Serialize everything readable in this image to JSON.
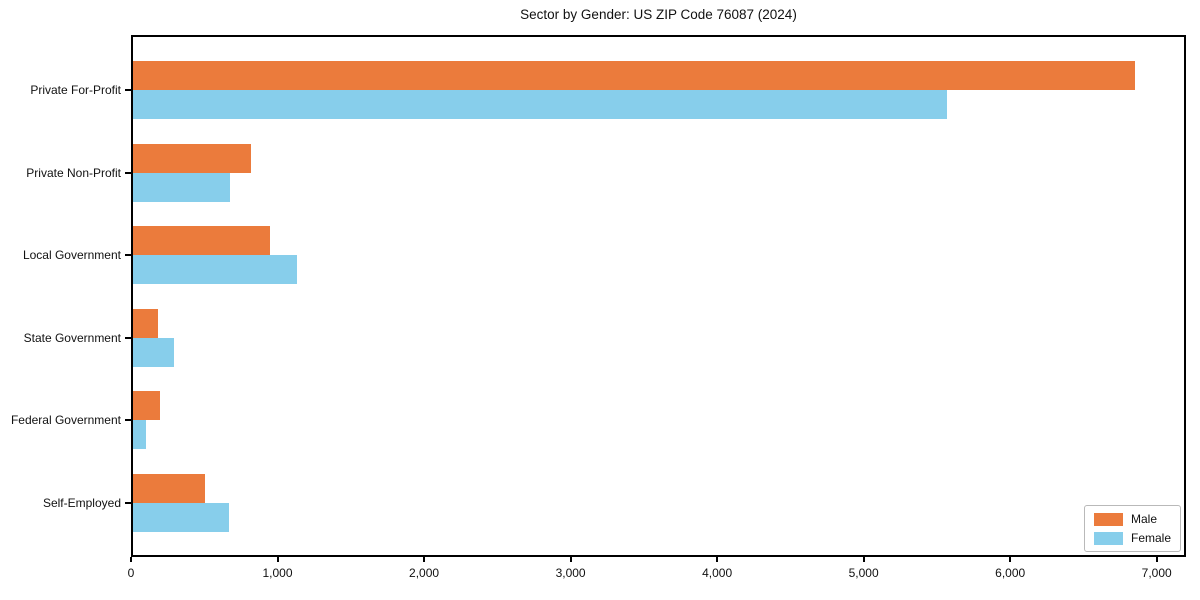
{
  "chart_data": {
    "type": "bar",
    "orientation": "horizontal",
    "title": "Sector by Gender: US ZIP Code 76087 (2024)",
    "categories": [
      "Private For-Profit",
      "Private Non-Profit",
      "Local Government",
      "State Government",
      "Federal Government",
      "Self-Employed"
    ],
    "series": [
      {
        "name": "Male",
        "color": "#EB7B3C",
        "values": [
          6850,
          820,
          950,
          185,
          200,
          505
        ]
      },
      {
        "name": "Female",
        "color": "#87CEEB",
        "values": [
          5570,
          675,
          1130,
          290,
          100,
          670
        ]
      }
    ],
    "xlabel": "",
    "ylabel": "",
    "xlim": [
      0,
      7200
    ],
    "xticks": [
      0,
      1000,
      2000,
      3000,
      4000,
      5000,
      6000,
      7000
    ],
    "xtick_labels": [
      "0",
      "1,000",
      "2,000",
      "3,000",
      "4,000",
      "5,000",
      "6,000",
      "7,000"
    ],
    "grid": false,
    "legend_position": "lower right",
    "axis_color": "#000000"
  }
}
